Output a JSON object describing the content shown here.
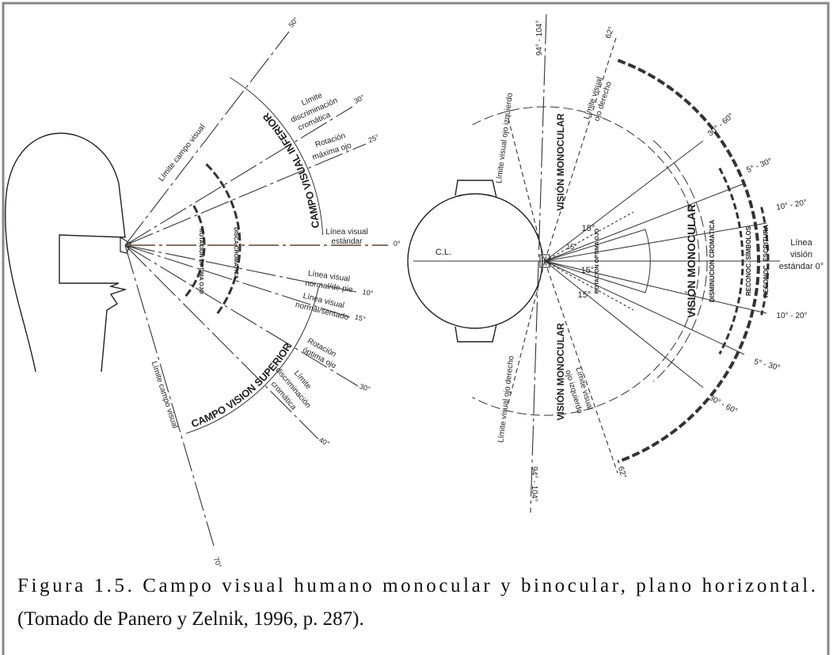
{
  "left": {
    "angles": [
      "50°",
      "30°",
      "25°",
      "0°",
      "10°",
      "15°",
      "30°",
      "40°",
      "70°"
    ],
    "labels": [
      "Límite campo visual",
      "Límite",
      "discriminación",
      "cromática",
      "Rotación",
      "máxima ojo",
      "Línea visual",
      "estándar",
      "Línea visual",
      "normal/de pie",
      "Línea visual",
      "normal/sentado",
      "Rotación",
      "óptima ojo",
      "Límite",
      "discriminación",
      "cromática",
      "Límite campo visual"
    ],
    "arcs": [
      "CAMPO VISUAL INFERIOR",
      "CAMPO VISION SUPERIOR",
      "DISCA CROMATICA",
      "ROTACION OPTIMA OJO"
    ]
  },
  "right": {
    "angles": [
      "94° - 104°",
      "62°",
      "30° - 60°",
      "5° - 30°",
      "10° - 20°",
      "10° - 20°",
      "5° - 30°",
      "30° - 60°",
      "62°",
      "94° - 104°"
    ],
    "labels": [
      "C.L.",
      "Línea",
      "visión",
      "estándar 0°",
      "Límite visual ojo izquierdo",
      "Límite visual",
      "ojo derecho",
      "Límite visual ojo derecho",
      "Límite visual",
      "ojo izquierdo",
      "15°",
      "15°",
      "15°",
      "15°"
    ],
    "arcs": [
      "VISIÓN MONOCULAR",
      "VISIÓN MONOCULAR",
      "VISIÓN MONOCULAR",
      "DISMINUCION CROMATICA",
      "RECONOC. SÍMBOLOS",
      "RECONOC. ESCRITURA",
      "ROTACION OPTIMA OJO"
    ]
  },
  "caption": [
    "Figura 1.5. Campo visual humano monocular y binocular, plano horizontal.",
    "(Tomado de Panero y Zelnik, 1996, p. 287)."
  ]
}
